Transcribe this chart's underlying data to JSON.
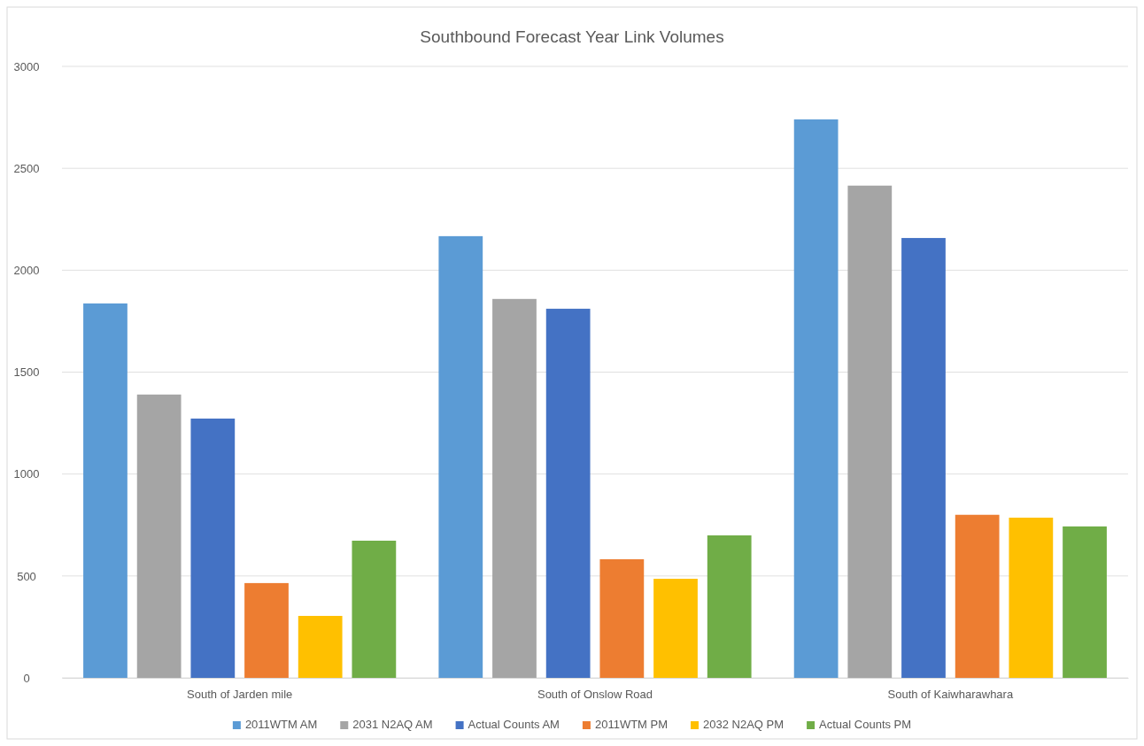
{
  "chart_data": {
    "type": "bar",
    "title": "Southbound Forecast Year Link Volumes",
    "categories": [
      "South of Jarden mile",
      "South of Onslow Road",
      "South of Kaiwharawhara"
    ],
    "series": [
      {
        "name": "2011WTM AM",
        "color": "#5b9bd5",
        "values": [
          1837,
          2167,
          2740
        ]
      },
      {
        "name": "2031 N2AQ AM",
        "color": "#a5a5a5",
        "values": [
          1390,
          1859,
          2415
        ]
      },
      {
        "name": "Actual Counts AM",
        "color": "#4472c4",
        "values": [
          1272,
          1811,
          2158
        ]
      },
      {
        "name": "2011WTM PM",
        "color": "#ed7d31",
        "values": [
          465,
          582,
          800
        ]
      },
      {
        "name": "2032 N2AQ PM",
        "color": "#ffc000",
        "values": [
          304,
          486,
          786
        ]
      },
      {
        "name": "Actual Counts PM",
        "color": "#70ad47",
        "values": [
          673,
          699,
          743
        ]
      }
    ],
    "ylim": [
      0,
      3000
    ],
    "yticks": [
      0,
      500,
      1000,
      1500,
      2000,
      2500,
      3000
    ],
    "grid": "y",
    "legend": "bottom"
  }
}
